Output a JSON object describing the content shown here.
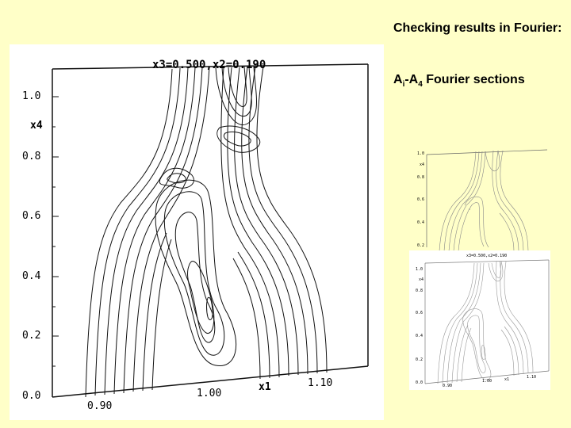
{
  "slide": {
    "title": "Checking results in Fourier:",
    "subtitle_prefix": "A",
    "subtitle_sub1": "i",
    "subtitle_dash": "-A",
    "subtitle_sub2": "4",
    "subtitle_suffix": " Fourier sections"
  },
  "main_plot": {
    "header": "x3=0.500,x2=0.190",
    "y_axis_label": "x4",
    "x_axis_label": "x1",
    "y_ticks": [
      "1.0",
      "0.8",
      "0.6",
      "0.4",
      "0.2",
      "0.0"
    ],
    "x_ticks": [
      "0.90",
      "1.00",
      "1.10"
    ]
  },
  "thumb_top": {
    "y_ticks": [
      "1.0",
      "0.8",
      "0.6",
      "0.4",
      "0.2"
    ],
    "y_axis_label": "x4"
  },
  "thumb_bottom": {
    "header": "x3=0.500,x2=0.190",
    "y_ticks": [
      "1.0",
      "0.8",
      "0.6",
      "0.4",
      "0.2",
      "0.0"
    ],
    "y_axis_label": "x4",
    "x_ticks": [
      "0.90",
      "1.00",
      "1.10"
    ],
    "x_axis_label": "x1"
  },
  "colors": {
    "background": "#FFFFC8",
    "panel": "#FFFFFF",
    "contour": "#111111"
  }
}
